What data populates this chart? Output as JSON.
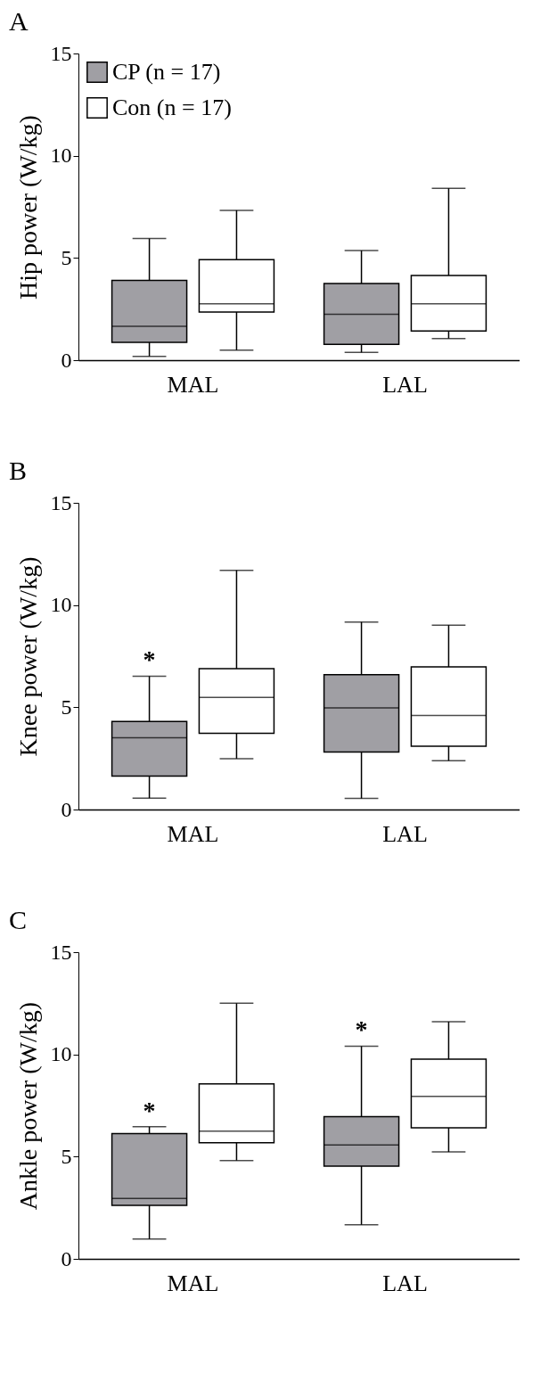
{
  "chart_data": [
    {
      "type": "box",
      "title": "A",
      "ylabel": "Hip power (W/kg)",
      "categories": [
        "MAL",
        "LAL"
      ],
      "ylim": [
        0,
        15
      ],
      "yticks": [
        0,
        5,
        10,
        15
      ],
      "grid": false,
      "legend": "top left",
      "series": [
        {
          "name": "CP (n = 17)",
          "color": "#a09fa4",
          "boxes": [
            {
              "low": 0.19,
              "q1": 0.87,
              "median": 1.66,
              "q3": 3.9,
              "high": 5.95
            },
            {
              "low": 0.38,
              "q1": 0.77,
              "median": 2.25,
              "q3": 3.75,
              "high": 5.36
            }
          ]
        },
        {
          "name": "Con (n = 17)",
          "color": "#ffffff",
          "boxes": [
            {
              "low": 0.49,
              "q1": 2.36,
              "median": 2.76,
              "q3": 4.92,
              "high": 7.33
            },
            {
              "low": 1.06,
              "q1": 1.43,
              "median": 2.76,
              "q3": 4.14,
              "high": 8.41
            }
          ]
        }
      ]
    },
    {
      "type": "box",
      "title": "B",
      "ylabel": "Knee power (W/kg)",
      "categories": [
        "MAL",
        "LAL"
      ],
      "ylim": [
        0,
        15
      ],
      "yticks": [
        0,
        5,
        10,
        15
      ],
      "grid": false,
      "series": [
        {
          "color": "#a09fa4",
          "value_labels": [
            "*",
            null
          ],
          "boxes": [
            {
              "low": 0.56,
              "q1": 1.64,
              "median": 3.51,
              "q3": 4.31,
              "high": 6.52
            },
            {
              "low": 0.54,
              "q1": 2.81,
              "median": 4.97,
              "q3": 6.59,
              "high": 9.17
            }
          ]
        },
        {
          "color": "#ffffff",
          "boxes": [
            {
              "low": 2.49,
              "q1": 3.73,
              "median": 5.48,
              "q3": 6.89,
              "high": 11.7
            },
            {
              "low": 2.39,
              "q1": 3.1,
              "median": 4.6,
              "q3": 6.98,
              "high": 9.02
            }
          ]
        }
      ]
    },
    {
      "type": "box",
      "title": "C",
      "ylabel": "Ankle power (W/kg)",
      "categories": [
        "MAL",
        "LAL"
      ],
      "ylim": [
        0,
        15
      ],
      "yticks": [
        0,
        5,
        10,
        15
      ],
      "grid": false,
      "series": [
        {
          "color": "#a09fa4",
          "value_labels": [
            "*",
            "*"
          ],
          "boxes": [
            {
              "low": 0.97,
              "q1": 2.62,
              "median": 2.95,
              "q3": 6.13,
              "high": 6.46
            },
            {
              "low": 1.67,
              "q1": 4.53,
              "median": 5.57,
              "q3": 6.96,
              "high": 10.4
            }
          ]
        },
        {
          "color": "#ffffff",
          "boxes": [
            {
              "low": 4.81,
              "q1": 5.68,
              "median": 6.25,
              "q3": 8.56,
              "high": 12.5
            },
            {
              "low": 5.23,
              "q1": 6.41,
              "median": 7.95,
              "q3": 9.77,
              "high": 11.6
            }
          ]
        }
      ]
    }
  ]
}
